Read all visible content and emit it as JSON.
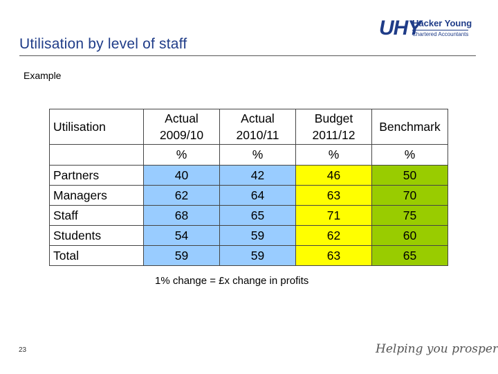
{
  "slide": {
    "title": "Utilisation by level of staff",
    "subtitle": "Example",
    "note": "1% change = £x change in profits",
    "page_number": "23",
    "tagline": "Helping you prosper"
  },
  "logo": {
    "mark": "UHY",
    "name": "Hacker Young",
    "sub": "Chartered Accountants"
  },
  "table": {
    "header": {
      "label": "Utilisation",
      "columns": [
        {
          "line1": "Actual",
          "line2": "2009/10"
        },
        {
          "line1": "Actual",
          "line2": "2010/11"
        },
        {
          "line1": "Budget",
          "line2": "2011/12"
        },
        {
          "line1": "",
          "line2": "Benchmark"
        }
      ]
    },
    "units": [
      "%",
      "%",
      "%",
      "%"
    ],
    "rows": [
      {
        "label": "Partners",
        "values": [
          "40",
          "42",
          "46",
          "50"
        ]
      },
      {
        "label": "Managers",
        "values": [
          "62",
          "64",
          "63",
          "70"
        ]
      },
      {
        "label": "Staff",
        "values": [
          "68",
          "65",
          "71",
          "75"
        ]
      },
      {
        "label": "Students",
        "values": [
          "54",
          "59",
          "62",
          "60"
        ]
      },
      {
        "label": "Total",
        "values": [
          "59",
          "59",
          "63",
          "65"
        ]
      }
    ],
    "colors": {
      "actual": "#99ccff",
      "budget": "#ffff00",
      "benchmark": "#99cc00"
    }
  }
}
